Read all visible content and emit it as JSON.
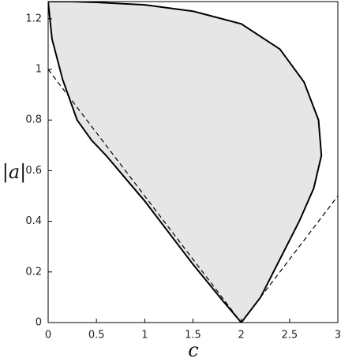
{
  "chart_data": {
    "type": "region",
    "x_label": "c",
    "y_label": "|a|",
    "xlim": [
      0,
      3
    ],
    "ylim": [
      0,
      1.268
    ],
    "xticks": [
      0,
      0.5,
      1,
      1.5,
      2,
      2.5,
      3
    ],
    "yticks": [
      0,
      0.2,
      0.4,
      0.6,
      0.8,
      1,
      1.2
    ],
    "fill": "#e6e6e6",
    "color": "#000000",
    "boundary": {
      "x": [
        0,
        0.04,
        0.15,
        0.3,
        0.45,
        0.6,
        0.8,
        1,
        1.25,
        1.5,
        1.8,
        2,
        2.2,
        2.4,
        2.6,
        2.75,
        2.83,
        2.8,
        2.65,
        2.4,
        2,
        1.5,
        1,
        0.5,
        0.25
      ],
      "y": [
        1.268,
        1.12,
        0.96,
        0.8,
        0.72,
        0.66,
        0.57,
        0.48,
        0.355,
        0.23,
        0.09,
        0,
        0.1,
        0.25,
        0.4,
        0.53,
        0.66,
        0.8,
        0.95,
        1.08,
        1.18,
        1.23,
        1.255,
        1.265,
        1.268
      ]
    },
    "lines": [
      {
        "x": [
          0,
          2
        ],
        "y": [
          1,
          0
        ],
        "dash": true
      },
      {
        "x": [
          2,
          3
        ],
        "y": [
          0,
          0.5
        ],
        "dash": true
      }
    ]
  }
}
